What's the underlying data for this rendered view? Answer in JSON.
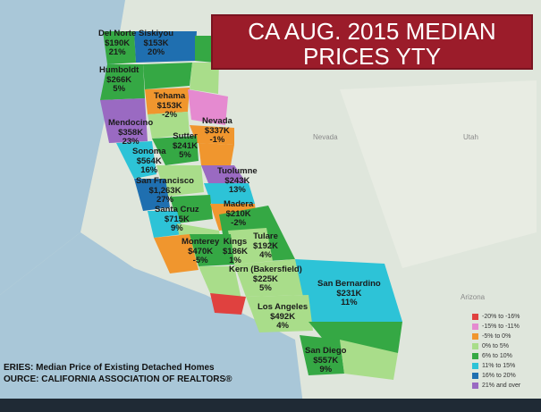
{
  "title": [
    "CA AUG. 2015 MEDIAN",
    "PRICES YTY"
  ],
  "states": [
    "Nevada",
    "Utah",
    "Arizona"
  ],
  "regions": [
    {
      "name": "Del Norte",
      "price": "$190K",
      "change": "21%"
    },
    {
      "name": "Siskiyou",
      "price": "$153K",
      "change": "20%"
    },
    {
      "name": "Humboldt",
      "price": "$266K",
      "change": "5%"
    },
    {
      "name": "Tehama",
      "price": "$153K",
      "change": "-2%"
    },
    {
      "name": "Mendocino",
      "price": "$358K",
      "change": "23%"
    },
    {
      "name": "Nevada",
      "price": "$337K",
      "change": "-1%"
    },
    {
      "name": "Sutter",
      "price": "$241K",
      "change": "5%"
    },
    {
      "name": "Sonoma",
      "price": "$564K",
      "change": "16%"
    },
    {
      "name": "Tuolumne",
      "price": "$243K",
      "change": "13%"
    },
    {
      "name": "San Francisco",
      "price": "$1,263K",
      "change": "27%"
    },
    {
      "name": "Madera",
      "price": "$210K",
      "change": "-2%"
    },
    {
      "name": "Santa Cruz",
      "price": "$715K",
      "change": "9%"
    },
    {
      "name": "Tulare",
      "price": "$192K",
      "change": "4%"
    },
    {
      "name": "Monterey",
      "price": "$470K",
      "change": "-5%"
    },
    {
      "name": "Kings",
      "price": "$186K",
      "change": "1%"
    },
    {
      "name": "Kern (Bakersfield)",
      "price": "$225K",
      "change": "5%"
    },
    {
      "name": "San Bernardino",
      "price": "$231K",
      "change": "11%"
    },
    {
      "name": "Los Angeles",
      "price": "$492K",
      "change": "4%"
    },
    {
      "name": "San Diego",
      "price": "$557K",
      "change": "9%"
    }
  ],
  "legend": [
    {
      "label": "-20% to -16%",
      "color": "#e0413f"
    },
    {
      "label": "-15% to -11%",
      "color": "#e58ad0"
    },
    {
      "label": "-5% to 0%",
      "color": "#f0962e"
    },
    {
      "label": "0% to 5%",
      "color": "#a9dd8a"
    },
    {
      "label": "6% to 10%",
      "color": "#35a844"
    },
    {
      "label": "11% to 15%",
      "color": "#2dc3d7"
    },
    {
      "label": "16% to 20%",
      "color": "#1f6fb0"
    },
    {
      "label": "21% and over",
      "color": "#9a6ac2"
    }
  ],
  "source": [
    "ERIES: Median Price of Existing Detached Homes",
    "OURCE:  CALIFORNIA ASSOCIATION OF REALTORS®"
  ]
}
